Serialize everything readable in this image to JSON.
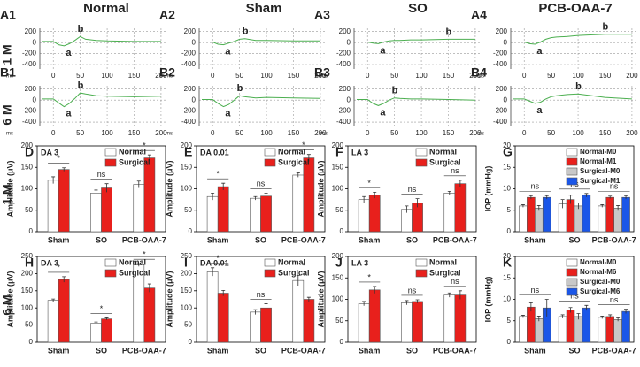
{
  "headers": [
    "Normal",
    "Sham",
    "SO",
    "PCB-OAA-7"
  ],
  "row_labels": [
    "1 M",
    "6 M",
    "1 M",
    "6 M"
  ],
  "chart_data": [
    {
      "type": "line",
      "panel": "A1",
      "x": [
        -20,
        0,
        10,
        20,
        30,
        40,
        50,
        60,
        80,
        100,
        150,
        200
      ],
      "series": [
        {
          "color": "#4caf50",
          "values": [
            20,
            20,
            -40,
            -60,
            -20,
            40,
            110,
            60,
            40,
            30,
            20,
            20
          ]
        }
      ],
      "xlim": [
        -25,
        210
      ],
      "ylim": [
        -480,
        260
      ],
      "xticks": [
        0,
        50,
        100,
        150,
        200
      ],
      "yticks": [
        200,
        0,
        -200,
        -400
      ],
      "x_unit": "ms",
      "annotations": [
        "a",
        "b"
      ],
      "grid": true
    },
    {
      "type": "line",
      "panel": "A2",
      "x": [
        -20,
        0,
        10,
        20,
        30,
        40,
        50,
        60,
        80,
        100,
        150,
        200
      ],
      "series": [
        {
          "color": "#4caf50",
          "values": [
            10,
            10,
            -30,
            -40,
            -10,
            20,
            60,
            70,
            40,
            40,
            30,
            30
          ]
        }
      ],
      "xlim": [
        -25,
        210
      ],
      "ylim": [
        -480,
        260
      ],
      "xticks": [
        0,
        50,
        100,
        150,
        200
      ],
      "yticks": [
        200,
        0,
        -200,
        -400
      ],
      "x_unit": "ms",
      "annotations": [
        "a",
        "b"
      ],
      "grid": true
    },
    {
      "type": "line",
      "panel": "A3",
      "x": [
        -20,
        0,
        10,
        20,
        30,
        40,
        50,
        60,
        80,
        100,
        150,
        200
      ],
      "series": [
        {
          "color": "#4caf50",
          "values": [
            10,
            10,
            -10,
            -20,
            10,
            30,
            40,
            40,
            50,
            50,
            60,
            60
          ]
        }
      ],
      "xlim": [
        -25,
        210
      ],
      "ylim": [
        -480,
        260
      ],
      "xticks": [
        0,
        50,
        100,
        150,
        200
      ],
      "yticks": [
        200,
        0,
        -200,
        -400
      ],
      "x_unit": "ms",
      "annotations": [
        "a",
        "b"
      ],
      "grid": true
    },
    {
      "type": "line",
      "panel": "A4",
      "x": [
        -20,
        0,
        10,
        20,
        30,
        40,
        50,
        60,
        80,
        100,
        150,
        200
      ],
      "series": [
        {
          "color": "#4caf50",
          "values": [
            10,
            10,
            -20,
            -30,
            10,
            60,
            90,
            100,
            110,
            130,
            150,
            150
          ]
        }
      ],
      "xlim": [
        -25,
        210
      ],
      "ylim": [
        -480,
        260
      ],
      "xticks": [
        0,
        50,
        100,
        150,
        200
      ],
      "yticks": [
        200,
        0,
        -200,
        -400
      ],
      "x_unit": "ms",
      "annotations": [
        "a",
        "b"
      ],
      "grid": true
    },
    {
      "type": "line",
      "panel": "B1",
      "x": [
        -20,
        0,
        10,
        20,
        30,
        40,
        50,
        60,
        80,
        100,
        150,
        200
      ],
      "series": [
        {
          "color": "#4caf50",
          "values": [
            20,
            20,
            -50,
            -120,
            -60,
            30,
            130,
            110,
            80,
            70,
            60,
            70
          ]
        }
      ],
      "xlim": [
        -25,
        210
      ],
      "ylim": [
        -480,
        260
      ],
      "xticks": [
        0,
        50,
        100,
        150,
        200
      ],
      "yticks": [
        200,
        0,
        -200,
        -400
      ],
      "x_unit": "ms",
      "annotations": [
        "a",
        "b"
      ],
      "grid": true
    },
    {
      "type": "line",
      "panel": "B2",
      "x": [
        -20,
        0,
        10,
        20,
        30,
        40,
        50,
        60,
        80,
        100,
        150,
        200
      ],
      "series": [
        {
          "color": "#4caf50",
          "values": [
            10,
            10,
            -60,
            -120,
            -80,
            0,
            80,
            60,
            40,
            50,
            40,
            30
          ]
        }
      ],
      "xlim": [
        -25,
        210
      ],
      "ylim": [
        -480,
        260
      ],
      "xticks": [
        0,
        50,
        100,
        150,
        200
      ],
      "yticks": [
        200,
        0,
        -200,
        -400
      ],
      "x_unit": "ms",
      "annotations": [
        "a",
        "b"
      ],
      "grid": true
    },
    {
      "type": "line",
      "panel": "B3",
      "x": [
        -20,
        0,
        10,
        20,
        30,
        40,
        50,
        60,
        80,
        100,
        150,
        200
      ],
      "series": [
        {
          "color": "#4caf50",
          "values": [
            10,
            10,
            -60,
            -100,
            -60,
            0,
            40,
            30,
            20,
            20,
            10,
            0
          ]
        }
      ],
      "xlim": [
        -25,
        210
      ],
      "ylim": [
        -480,
        260
      ],
      "xticks": [
        0,
        50,
        100,
        150,
        200
      ],
      "yticks": [
        200,
        0,
        -200,
        -400
      ],
      "x_unit": "ms",
      "annotations": [
        "a",
        "b"
      ],
      "grid": true
    },
    {
      "type": "line",
      "panel": "B4",
      "x": [
        -20,
        0,
        10,
        20,
        30,
        40,
        50,
        60,
        80,
        100,
        150,
        200
      ],
      "series": [
        {
          "color": "#4caf50",
          "values": [
            20,
            20,
            -20,
            -60,
            -40,
            20,
            60,
            80,
            100,
            110,
            50,
            20
          ]
        }
      ],
      "xlim": [
        -25,
        210
      ],
      "ylim": [
        -480,
        260
      ],
      "xticks": [
        0,
        50,
        100,
        150,
        200
      ],
      "yticks": [
        200,
        0,
        -200,
        -400
      ],
      "x_unit": "ms",
      "annotations": [
        "a",
        "b"
      ],
      "grid": true
    },
    {
      "type": "bar",
      "panel": "D",
      "title": "DA 3",
      "ylabel": "Amplitude (μV)",
      "categories": [
        "Sham",
        "SO",
        "PCB-OAA-7"
      ],
      "series": [
        {
          "name": "Normal",
          "color": "#ffffff",
          "values": [
            120,
            90,
            110
          ],
          "errors": [
            8,
            7,
            8
          ]
        },
        {
          "name": "Surgical",
          "color": "#e8201c",
          "values": [
            145,
            102,
            172
          ],
          "errors": [
            4,
            10,
            7
          ]
        }
      ],
      "significance": [
        "*",
        "ns",
        "*"
      ],
      "ylim": [
        0,
        200
      ],
      "yticks": [
        0,
        50,
        100,
        150,
        200
      ]
    },
    {
      "type": "bar",
      "panel": "E",
      "title": "DA 0.01",
      "ylabel": "Amplitude (μV)",
      "categories": [
        "Sham",
        "SO",
        "PCB-OAA-7"
      ],
      "series": [
        {
          "name": "Normal",
          "color": "#ffffff",
          "values": [
            82,
            78,
            132
          ],
          "errors": [
            8,
            4,
            5
          ]
        },
        {
          "name": "Surgical",
          "color": "#e8201c",
          "values": [
            105,
            83,
            172
          ],
          "errors": [
            8,
            7,
            8
          ]
        }
      ],
      "significance": [
        "*",
        "ns",
        "*"
      ],
      "ylim": [
        0,
        200
      ],
      "yticks": [
        0,
        50,
        100,
        150,
        200
      ]
    },
    {
      "type": "bar",
      "panel": "F",
      "title": "LA 3",
      "ylabel": "Amplitude (μV)",
      "categories": [
        "Sham",
        "SO",
        "PCB-OAA-7"
      ],
      "series": [
        {
          "name": "Normal",
          "color": "#ffffff",
          "values": [
            75,
            52,
            90
          ],
          "errors": [
            7,
            8,
            4
          ]
        },
        {
          "name": "Surgical",
          "color": "#e8201c",
          "values": [
            85,
            67,
            112
          ],
          "errors": [
            7,
            10,
            8
          ]
        }
      ],
      "significance": [
        "*",
        "ns",
        "ns"
      ],
      "ylim": [
        0,
        200
      ],
      "yticks": [
        0,
        50,
        100,
        150,
        200
      ]
    },
    {
      "type": "bar",
      "panel": "G",
      "ylabel": "IOP (mmHg)",
      "categories": [
        "Sham",
        "SO",
        "PCB-OAA-7"
      ],
      "series": [
        {
          "name": "Normal-M0",
          "color": "#ffffff",
          "values": [
            6,
            6.5,
            6
          ],
          "errors": [
            0.3,
            1,
            0.3
          ]
        },
        {
          "name": "Normal-M1",
          "color": "#e8201c",
          "values": [
            8,
            7.5,
            8
          ],
          "errors": [
            0.4,
            1,
            0.3
          ]
        },
        {
          "name": "Surgical-M0",
          "color": "#c8c8c8",
          "values": [
            5.5,
            6,
            5.5
          ],
          "errors": [
            0.6,
            0.7,
            0.6
          ]
        },
        {
          "name": "Surgical-M1",
          "color": "#1a56e8",
          "values": [
            8,
            8.5,
            8
          ],
          "errors": [
            0.4,
            0.4,
            0.4
          ]
        }
      ],
      "significance": [
        "ns",
        "ns",
        "ns"
      ],
      "ylim": [
        0,
        20
      ],
      "yticks": [
        0,
        5,
        10,
        15,
        20
      ]
    },
    {
      "type": "bar",
      "panel": "H",
      "title": "DA 3",
      "ylabel": "Amplitude (μV)",
      "categories": [
        "Sham",
        "SO",
        "PCB-OAA-7"
      ],
      "series": [
        {
          "name": "Normal",
          "color": "#ffffff",
          "values": [
            122,
            55,
            225
          ],
          "errors": [
            4,
            4,
            4
          ]
        },
        {
          "name": "Surgical",
          "color": "#e8201c",
          "values": [
            183,
            68,
            158
          ],
          "errors": [
            8,
            3,
            12
          ]
        }
      ],
      "significance": [
        "*",
        "*",
        "*"
      ],
      "ylim": [
        0,
        250
      ],
      "yticks": [
        0,
        50,
        100,
        150,
        200,
        250
      ]
    },
    {
      "type": "bar",
      "panel": "I",
      "title": "DA 0.01",
      "ylabel": "Amplitude (μV)",
      "categories": [
        "Sham",
        "SO",
        "PCB-OAA-7"
      ],
      "series": [
        {
          "name": "Normal",
          "color": "#ffffff",
          "values": [
            205,
            88,
            180
          ],
          "errors": [
            12,
            7,
            15
          ]
        },
        {
          "name": "Surgical",
          "color": "#e8201c",
          "values": [
            143,
            100,
            125
          ],
          "errors": [
            8,
            12,
            6
          ]
        }
      ],
      "significance": [
        "*",
        "ns",
        "*"
      ],
      "ylim": [
        0,
        250
      ],
      "yticks": [
        0,
        50,
        100,
        150,
        200,
        250
      ]
    },
    {
      "type": "bar",
      "panel": "J",
      "title": "LA 3",
      "ylabel": "Amplitude (μV)",
      "categories": [
        "Sham",
        "SO",
        "PCB-OAA-7"
      ],
      "series": [
        {
          "name": "Normal",
          "color": "#ffffff",
          "values": [
            90,
            92,
            110
          ],
          "errors": [
            5,
            5,
            5
          ]
        },
        {
          "name": "Surgical",
          "color": "#e8201c",
          "values": [
            122,
            95,
            110
          ],
          "errors": [
            8,
            4,
            10
          ]
        }
      ],
      "significance": [
        "*",
        "ns",
        "ns"
      ],
      "ylim": [
        0,
        200
      ],
      "yticks": [
        0,
        50,
        100,
        150,
        200
      ]
    },
    {
      "type": "bar",
      "panel": "K",
      "ylabel": "IOP (mmHg)",
      "categories": [
        "Sham",
        "SO",
        "PCB-OAA-7"
      ],
      "series": [
        {
          "name": "Normal-M0",
          "color": "#ffffff",
          "values": [
            6,
            6,
            5.8
          ],
          "errors": [
            0.3,
            0.4,
            0.3
          ]
        },
        {
          "name": "Normal-M6",
          "color": "#e8201c",
          "values": [
            8.2,
            7.5,
            6
          ],
          "errors": [
            1,
            0.6,
            0.4
          ]
        },
        {
          "name": "Surgical-M0",
          "color": "#c8c8c8",
          "values": [
            5.5,
            6,
            5.3
          ],
          "errors": [
            0.6,
            0.7,
            0.4
          ]
        },
        {
          "name": "Surgical-M6",
          "color": "#1a56e8",
          "values": [
            8,
            8,
            7.2
          ],
          "errors": [
            2,
            0.6,
            0.5
          ]
        }
      ],
      "significance": [
        "ns",
        "ns",
        "ns"
      ],
      "ylim": [
        0,
        20
      ],
      "yticks": [
        0,
        5,
        10,
        15,
        20
      ]
    }
  ]
}
